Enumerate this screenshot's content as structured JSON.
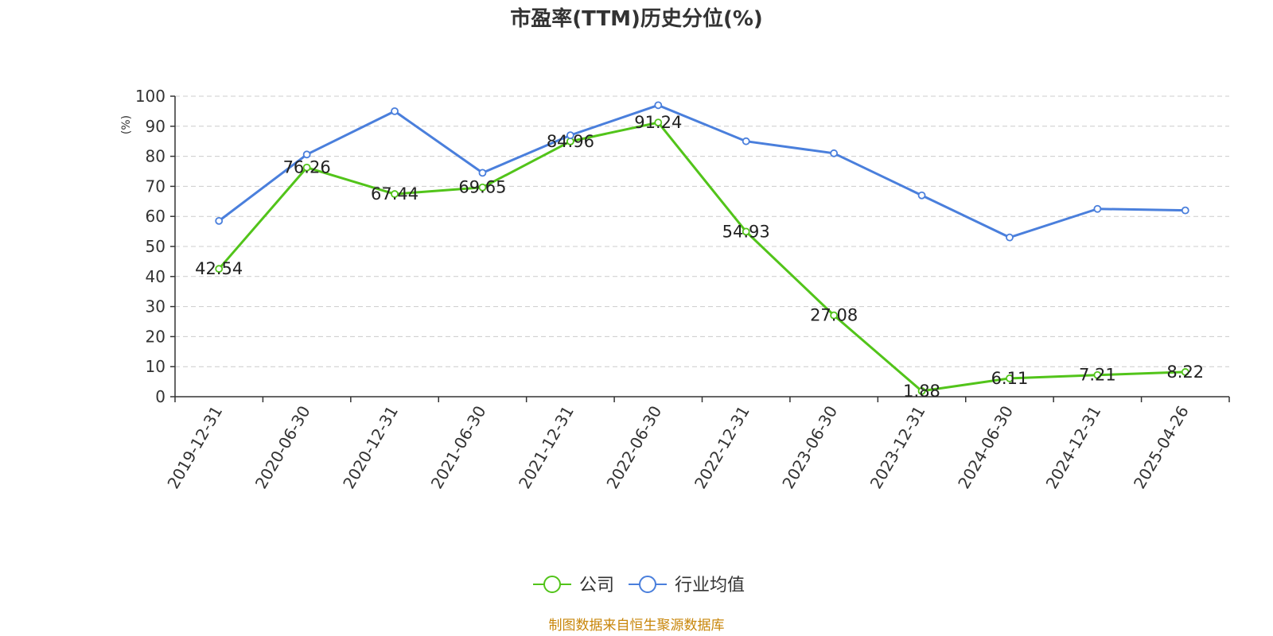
{
  "chart_data": {
    "type": "line",
    "title": "市盈率(TTM)历史分位(%)",
    "ylabel": "(%)",
    "ylim": [
      0,
      100
    ],
    "yticks": [
      0,
      10,
      20,
      30,
      40,
      50,
      60,
      70,
      80,
      90,
      100
    ],
    "categories": [
      "2019-12-31",
      "2020-06-30",
      "2020-12-31",
      "2021-06-30",
      "2021-12-31",
      "2022-06-30",
      "2022-12-31",
      "2023-06-30",
      "2023-12-31",
      "2024-06-30",
      "2024-12-31",
      "2025-04-26"
    ],
    "series": [
      {
        "name": "公司",
        "color": "#52c41a",
        "values": [
          42.54,
          76.26,
          67.44,
          69.65,
          84.96,
          91.24,
          54.93,
          27.08,
          1.88,
          6.11,
          7.21,
          8.22
        ],
        "labels": [
          "42.54",
          "76.26",
          "67.44",
          "69.65",
          "84.96",
          "91.24",
          "54.93",
          "27.08",
          "1.88",
          "6.11",
          "7.21",
          "8.22"
        ]
      },
      {
        "name": "行业均值",
        "color": "#4a7fdc",
        "values": [
          58.5,
          80.6,
          95.0,
          74.5,
          87.0,
          97.0,
          85.0,
          81.0,
          67.0,
          53.0,
          62.5,
          62.0
        ]
      }
    ],
    "grid": true,
    "legend_position": "bottom-center",
    "source": "制图数据来自恒生聚源数据库",
    "colors": {
      "axis": "#333333",
      "grid": "#cccccc",
      "ylabel": "#e60000",
      "source": "#c8860a"
    }
  }
}
